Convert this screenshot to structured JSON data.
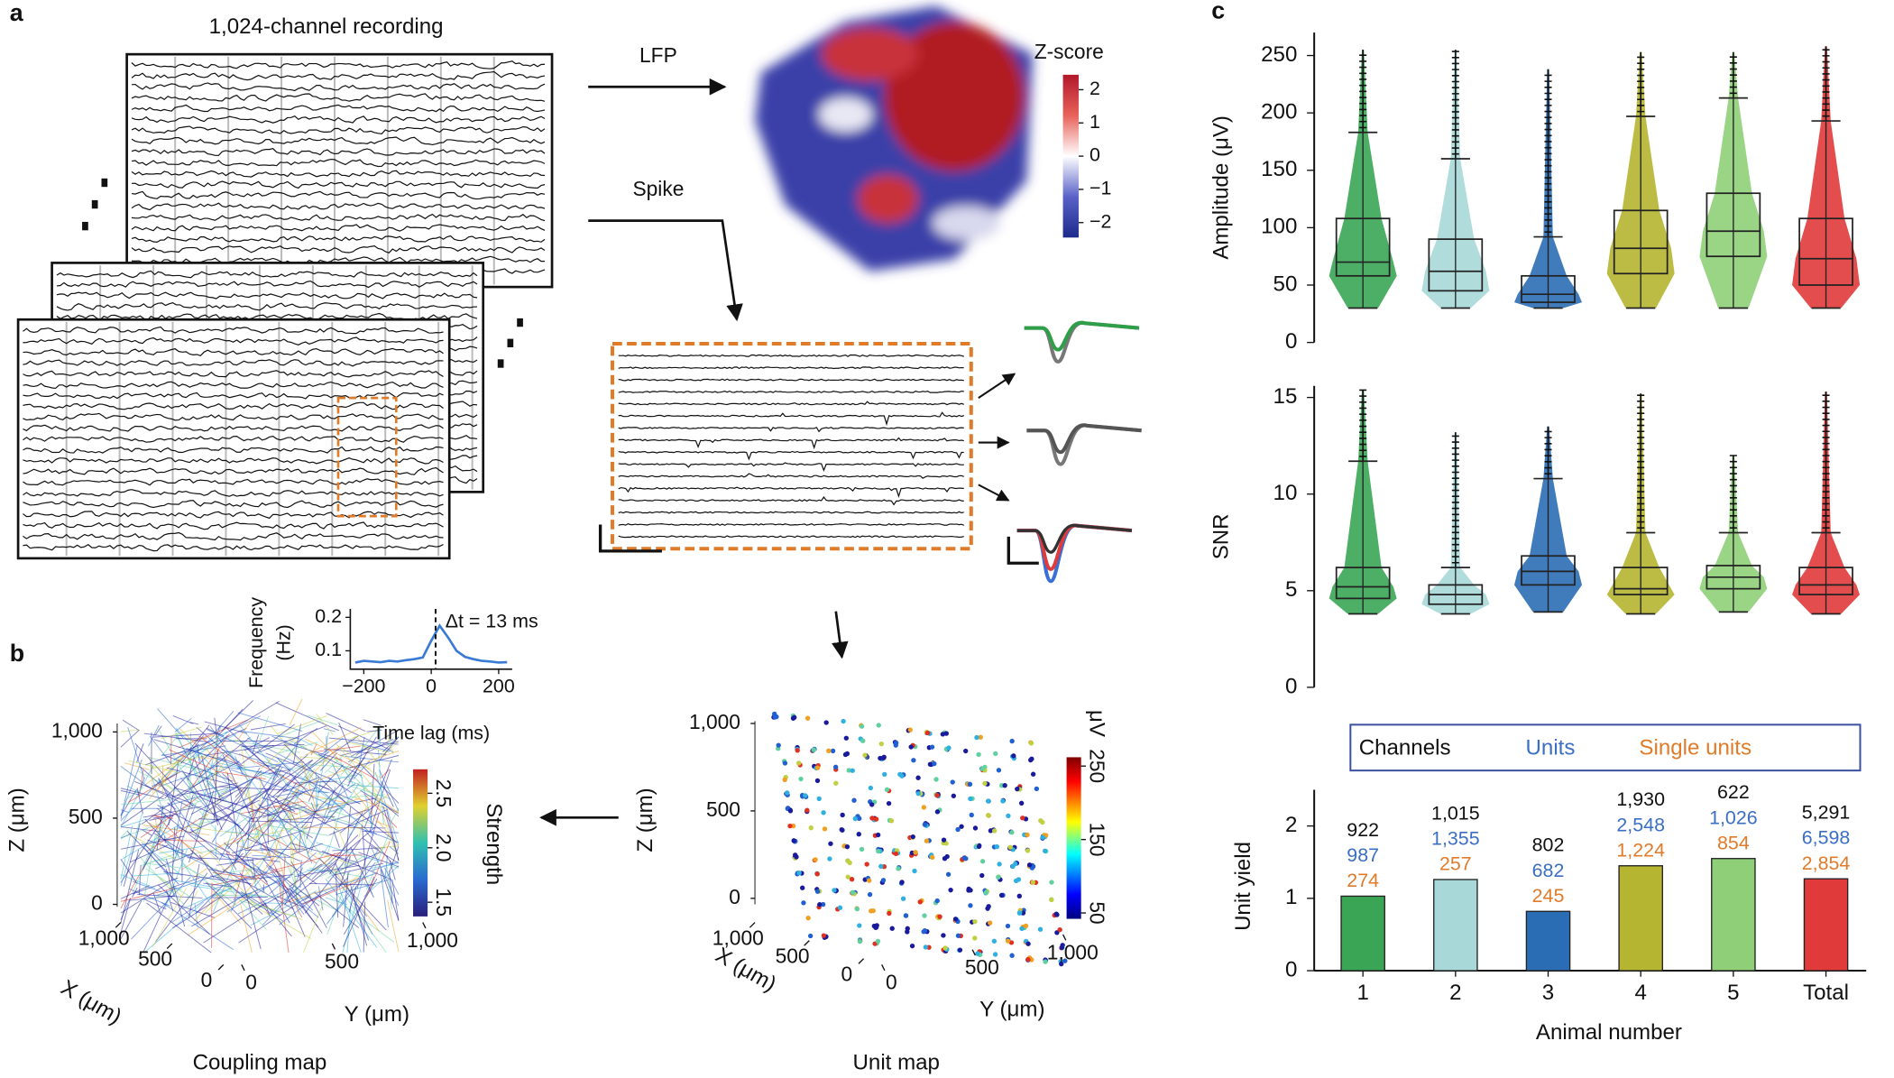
{
  "panel_labels": [
    "a",
    "b",
    "c"
  ],
  "recording": {
    "title": "1,024-channel recording",
    "lfp_label": "LFP",
    "spike_label": "Spike"
  },
  "zscore_colorbar": {
    "title": "Z-score",
    "clim": [
      -2.45,
      2.45
    ],
    "ticks": [
      2,
      1,
      0,
      {
        "value": -1,
        "label": "−1"
      },
      {
        "value": -2,
        "label": "−2"
      }
    ]
  },
  "coupling_map": {
    "caption": "Coupling map",
    "zlabel": "Z (μm)",
    "xlabel": "X (μm)",
    "ylabel": "Y (μm)",
    "zticks": [
      0,
      500,
      {
        "value": 1000,
        "label": "1,000"
      }
    ],
    "xticks": [
      {
        "value": 1000,
        "label": "1,000"
      },
      500,
      0
    ],
    "yticks": [
      0,
      500,
      {
        "value": 1000,
        "label": "1,000"
      }
    ],
    "colorbar": {
      "title": "Strength",
      "clim": [
        1.37,
        2.72
      ],
      "ticks": [
        {
          "value": 2.5,
          "label": "2.5"
        },
        {
          "value": 2,
          "label": "2.0"
        },
        {
          "value": 1.5,
          "label": "1.5"
        }
      ]
    }
  },
  "unit_map": {
    "caption": "Unit map",
    "zlabel": "Z (μm)",
    "xlabel": "X (μm)",
    "ylabel": "Y (μm)",
    "zticks": [
      0,
      500,
      {
        "value": 1000,
        "label": "1,000"
      }
    ],
    "xticks": [
      {
        "value": 1000,
        "label": "1,000"
      },
      500,
      0
    ],
    "yticks": [
      0,
      500,
      {
        "value": 1000,
        "label": "1,000"
      }
    ],
    "colorbar": {
      "title": "μV",
      "clim": [
        42,
        262
      ],
      "ticks": [
        250,
        150,
        50
      ]
    }
  },
  "chart_data": [
    {
      "type": "box",
      "ylabel": "Amplitude (μV)",
      "ylim": [
        0,
        270
      ],
      "yticks": [
        0,
        50,
        100,
        150,
        200,
        250
      ],
      "groups": [
        {
          "color": "#3aa655",
          "whisker_low": 30,
          "q1": 58,
          "median": 70,
          "q3": 108,
          "whisker_high": 183,
          "max": 255
        },
        {
          "color": "#a8d8d8",
          "whisker_low": 30,
          "q1": 45,
          "median": 62,
          "q3": 90,
          "whisker_high": 160,
          "max": 255
        },
        {
          "color": "#2b6db5",
          "whisker_low": 30,
          "q1": 35,
          "median": 42,
          "q3": 58,
          "whisker_high": 92,
          "max": 238
        },
        {
          "color": "#b5b531",
          "whisker_low": 30,
          "q1": 60,
          "median": 82,
          "q3": 115,
          "whisker_high": 197,
          "max": 253
        },
        {
          "color": "#8fcf78",
          "whisker_low": 30,
          "q1": 75,
          "median": 97,
          "q3": 130,
          "whisker_high": 213,
          "max": 253
        },
        {
          "color": "#e03a3a",
          "whisker_low": 30,
          "q1": 50,
          "median": 73,
          "q3": 108,
          "whisker_high": 193,
          "max": 258
        }
      ]
    },
    {
      "type": "box",
      "ylabel": "SNR",
      "ylim": [
        0,
        15.6
      ],
      "yticks": [
        0,
        5,
        10,
        15
      ],
      "groups": [
        {
          "color": "#3aa655",
          "whisker_low": 3.8,
          "q1": 4.6,
          "median": 5.2,
          "q3": 6.2,
          "whisker_high": 11.7,
          "max": 15.4
        },
        {
          "color": "#a8d8d8",
          "whisker_low": 3.8,
          "q1": 4.3,
          "median": 4.8,
          "q3": 5.3,
          "whisker_high": 6.2,
          "max": 13.2
        },
        {
          "color": "#2b6db5",
          "whisker_low": 3.9,
          "q1": 5.3,
          "median": 6.0,
          "q3": 6.8,
          "whisker_high": 10.8,
          "max": 13.5
        },
        {
          "color": "#b5b531",
          "whisker_low": 3.8,
          "q1": 4.8,
          "median": 5.1,
          "q3": 6.2,
          "whisker_high": 8.0,
          "max": 15.2
        },
        {
          "color": "#8fcf78",
          "whisker_low": 3.9,
          "q1": 5.1,
          "median": 5.7,
          "q3": 6.3,
          "whisker_high": 8.0,
          "max": 12.0
        },
        {
          "color": "#e03a3a",
          "whisker_low": 3.8,
          "q1": 4.8,
          "median": 5.3,
          "q3": 6.2,
          "whisker_high": 8.0,
          "max": 15.3
        }
      ]
    },
    {
      "type": "bar",
      "ylabel": "Unit yield",
      "xlabel": "Animal number",
      "categories": [
        "1",
        "2",
        "3",
        "4",
        "5",
        "Total"
      ],
      "values": [
        1.03,
        1.26,
        0.82,
        1.45,
        1.55,
        1.27
      ],
      "colors": [
        "#3aa655",
        "#a8d8d8",
        "#2b6db5",
        "#b5b531",
        "#8fcf78",
        "#e03a3a"
      ],
      "ylim": [
        0,
        2.5
      ],
      "yticks": [
        0,
        1,
        2
      ],
      "count_series": [
        {
          "name": "Channels",
          "color": "#111111",
          "values": [
            922,
            1015,
            802,
            1930,
            622,
            5291
          ],
          "value_labels": [
            "922",
            "1,015",
            "802",
            "1,930",
            "622",
            "5,291"
          ]
        },
        {
          "name": "Units",
          "color": "#3a6fc4",
          "values": [
            987,
            1355,
            682,
            2548,
            1026,
            6598
          ],
          "value_labels": [
            "987",
            "1,355",
            "682",
            "2,548",
            "1,026",
            "6,598"
          ]
        },
        {
          "name": "Single units",
          "color": "#e07b2a",
          "values": [
            274,
            257,
            245,
            1224,
            854,
            2854
          ],
          "value_labels": [
            "274",
            "257",
            "245",
            "1,224",
            "854",
            "2,854"
          ]
        }
      ]
    },
    {
      "type": "line",
      "ylabel": [
        "Frequency",
        "(Hz)"
      ],
      "xlabel": "Time lag (ms)",
      "annotation": "Δt = 13 ms",
      "marker_x": 13,
      "color": "#3a7bd5",
      "x": [
        -225,
        -200,
        -175,
        -150,
        -125,
        -100,
        -75,
        -50,
        -25,
        0,
        25,
        50,
        75,
        100,
        125,
        150,
        175,
        200,
        225
      ],
      "values": [
        0.065,
        0.07,
        0.068,
        0.066,
        0.07,
        0.068,
        0.072,
        0.075,
        0.08,
        0.13,
        0.175,
        0.14,
        0.1,
        0.082,
        0.075,
        0.07,
        0.068,
        0.065,
        0.066
      ],
      "xlim": [
        -240,
        240
      ],
      "ylim": [
        0.045,
        0.225
      ],
      "xticks": [
        {
          "value": -200,
          "label": "−200"
        },
        0,
        200
      ],
      "yticks": [
        0.1,
        0.2
      ]
    }
  ]
}
